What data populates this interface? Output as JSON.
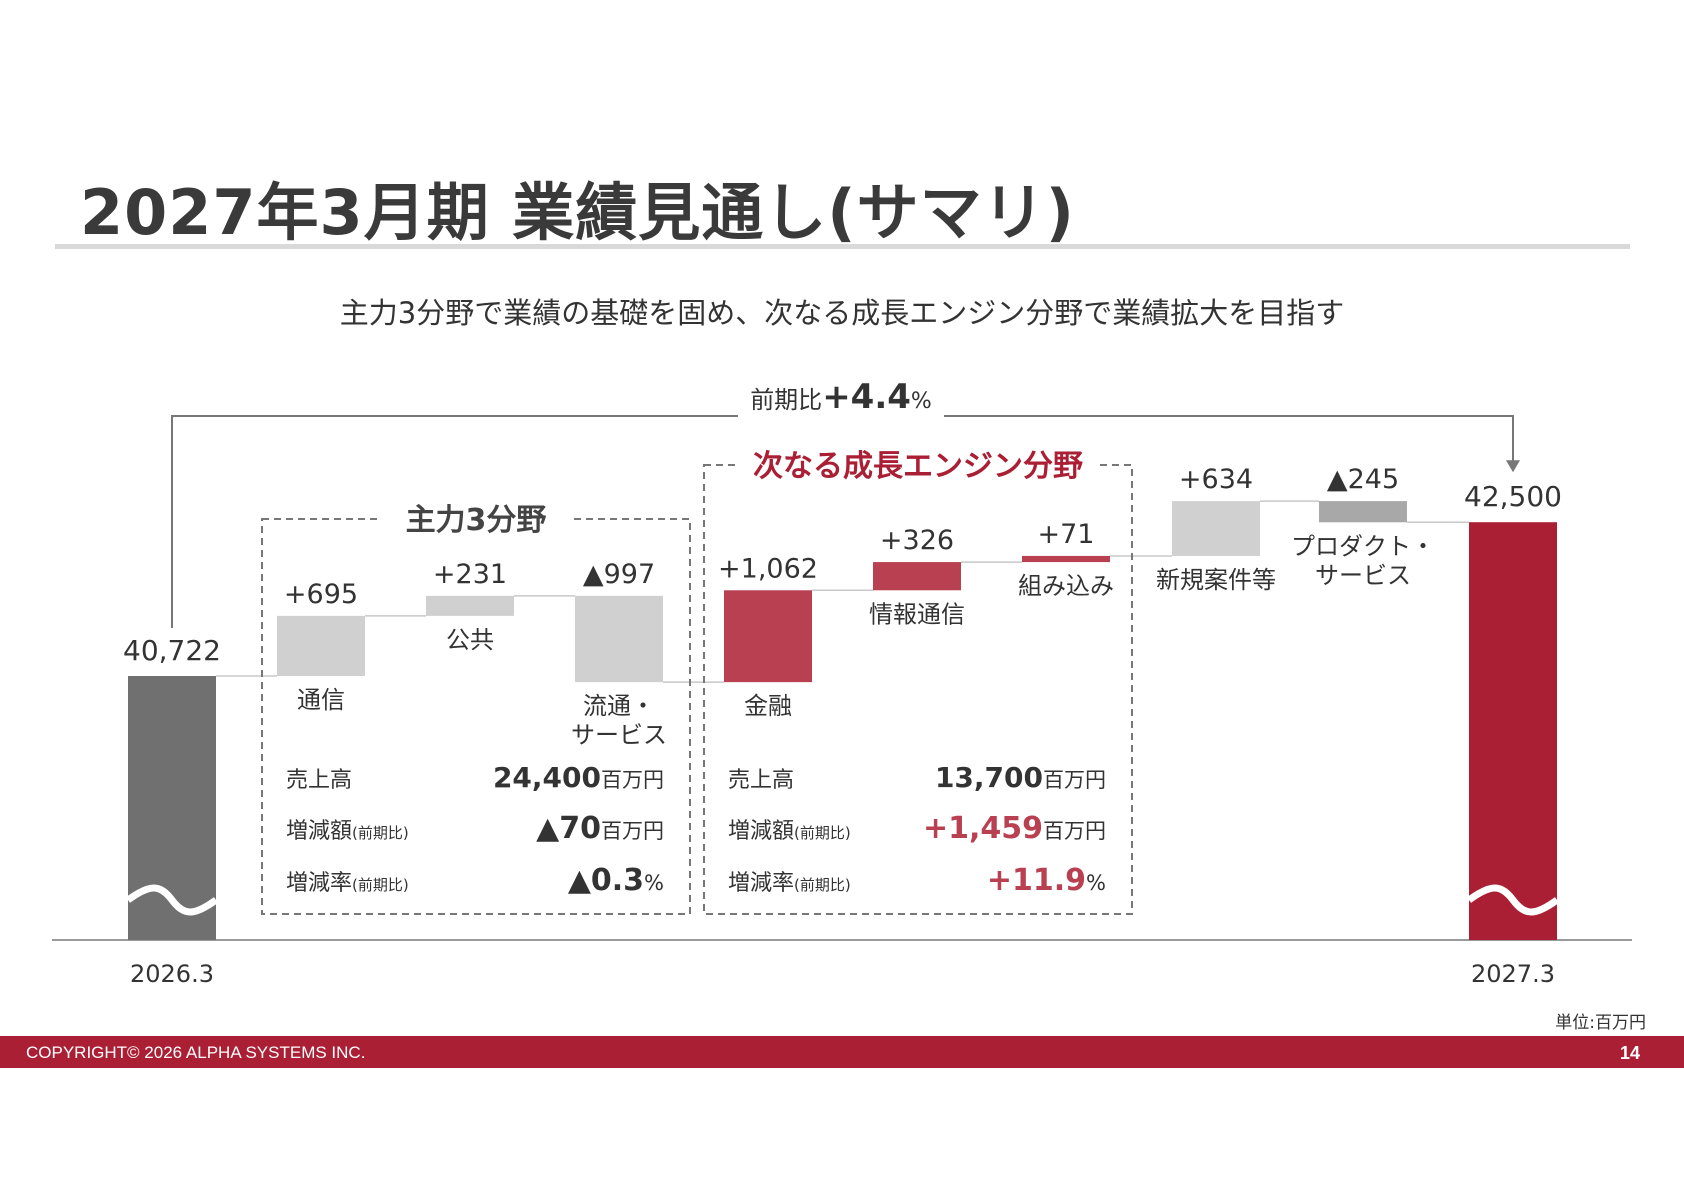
{
  "title": "2027年3月期 業績見通し(サマリ)",
  "subtitle": "主力3分野で業績の基礎を固め、次なる成長エンジン分野で業績拡大を目指す",
  "unit_note": "単位:百万円",
  "footer": {
    "copyright": "COPYRIGHT© 2026 ALPHA SYSTEMS INC.",
    "page": "14"
  },
  "colors": {
    "accent": "#ab1f35",
    "segment_red": "#b84050",
    "base_gray": "#707070",
    "light_gray": "#d0d0d0",
    "mid_gray": "#a8a8a8"
  },
  "total_change": {
    "prefix": "前期比",
    "value": "+4.4",
    "unit": "%"
  },
  "chart_data": {
    "type": "bar",
    "subtype": "waterfall",
    "start": {
      "label": "2026.3",
      "value": 40722,
      "value_label": "40,722"
    },
    "end": {
      "label": "2027.3",
      "value": 42500,
      "value_label": "42,500"
    },
    "steps": [
      {
        "name": "通信",
        "delta": 695,
        "delta_label": "+695",
        "group": "main3"
      },
      {
        "name": "公共",
        "delta": 231,
        "delta_label": "+231",
        "group": "main3"
      },
      {
        "name": "流通・\nサービス",
        "delta": -997,
        "delta_label": "▲997",
        "group": "main3"
      },
      {
        "name": "金融",
        "delta": 1062,
        "delta_label": "+1,062",
        "group": "growth"
      },
      {
        "name": "情報通信",
        "delta": 326,
        "delta_label": "+326",
        "group": "growth"
      },
      {
        "name": "組み込み",
        "delta": 71,
        "delta_label": "+71",
        "group": "growth"
      },
      {
        "name": "新規案件等",
        "delta": 634,
        "delta_label": "+634",
        "group": "other"
      },
      {
        "name": "プロダクト・\nサービス",
        "delta": -245,
        "delta_label": "▲245",
        "group": "other"
      }
    ],
    "axis_break": true
  },
  "groups": {
    "main3": {
      "title": "主力3分野",
      "rows": [
        {
          "label": "売上高",
          "note": "",
          "value": "24,400",
          "unit": "百万円"
        },
        {
          "label": "増減額",
          "note": "(前期比)",
          "value": "▲70",
          "unit": "百万円"
        },
        {
          "label": "増減率",
          "note": "(前期比)",
          "value": "▲0.3",
          "unit": "%"
        }
      ]
    },
    "growth": {
      "title": "次なる成長エンジン分野",
      "rows": [
        {
          "label": "売上高",
          "note": "",
          "value": "13,700",
          "unit": "百万円"
        },
        {
          "label": "増減額",
          "note": "(前期比)",
          "value": "+1,459",
          "unit": "百万円"
        },
        {
          "label": "増減率",
          "note": "(前期比)",
          "value": "+11.9",
          "unit": "%"
        }
      ]
    }
  }
}
